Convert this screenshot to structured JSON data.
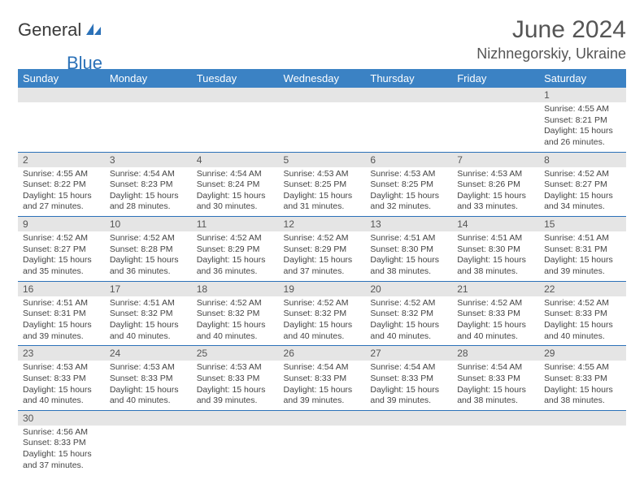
{
  "brand": {
    "part1": "General",
    "part2": "Blue"
  },
  "title": "June 2024",
  "location": "Nizhnegorskiy, Ukraine",
  "colors": {
    "header_bg": "#3b82c4",
    "header_text": "#ffffff",
    "daynum_bg": "#e5e5e5",
    "border": "#2b71b8",
    "brand_blue": "#2b71b8",
    "text": "#444444"
  },
  "weekdays": [
    "Sunday",
    "Monday",
    "Tuesday",
    "Wednesday",
    "Thursday",
    "Friday",
    "Saturday"
  ],
  "weeks": [
    [
      {
        "day": "",
        "lines": []
      },
      {
        "day": "",
        "lines": []
      },
      {
        "day": "",
        "lines": []
      },
      {
        "day": "",
        "lines": []
      },
      {
        "day": "",
        "lines": []
      },
      {
        "day": "",
        "lines": []
      },
      {
        "day": "1",
        "lines": [
          "Sunrise: 4:55 AM",
          "Sunset: 8:21 PM",
          "Daylight: 15 hours",
          "and 26 minutes."
        ]
      }
    ],
    [
      {
        "day": "2",
        "lines": [
          "Sunrise: 4:55 AM",
          "Sunset: 8:22 PM",
          "Daylight: 15 hours",
          "and 27 minutes."
        ]
      },
      {
        "day": "3",
        "lines": [
          "Sunrise: 4:54 AM",
          "Sunset: 8:23 PM",
          "Daylight: 15 hours",
          "and 28 minutes."
        ]
      },
      {
        "day": "4",
        "lines": [
          "Sunrise: 4:54 AM",
          "Sunset: 8:24 PM",
          "Daylight: 15 hours",
          "and 30 minutes."
        ]
      },
      {
        "day": "5",
        "lines": [
          "Sunrise: 4:53 AM",
          "Sunset: 8:25 PM",
          "Daylight: 15 hours",
          "and 31 minutes."
        ]
      },
      {
        "day": "6",
        "lines": [
          "Sunrise: 4:53 AM",
          "Sunset: 8:25 PM",
          "Daylight: 15 hours",
          "and 32 minutes."
        ]
      },
      {
        "day": "7",
        "lines": [
          "Sunrise: 4:53 AM",
          "Sunset: 8:26 PM",
          "Daylight: 15 hours",
          "and 33 minutes."
        ]
      },
      {
        "day": "8",
        "lines": [
          "Sunrise: 4:52 AM",
          "Sunset: 8:27 PM",
          "Daylight: 15 hours",
          "and 34 minutes."
        ]
      }
    ],
    [
      {
        "day": "9",
        "lines": [
          "Sunrise: 4:52 AM",
          "Sunset: 8:27 PM",
          "Daylight: 15 hours",
          "and 35 minutes."
        ]
      },
      {
        "day": "10",
        "lines": [
          "Sunrise: 4:52 AM",
          "Sunset: 8:28 PM",
          "Daylight: 15 hours",
          "and 36 minutes."
        ]
      },
      {
        "day": "11",
        "lines": [
          "Sunrise: 4:52 AM",
          "Sunset: 8:29 PM",
          "Daylight: 15 hours",
          "and 36 minutes."
        ]
      },
      {
        "day": "12",
        "lines": [
          "Sunrise: 4:52 AM",
          "Sunset: 8:29 PM",
          "Daylight: 15 hours",
          "and 37 minutes."
        ]
      },
      {
        "day": "13",
        "lines": [
          "Sunrise: 4:51 AM",
          "Sunset: 8:30 PM",
          "Daylight: 15 hours",
          "and 38 minutes."
        ]
      },
      {
        "day": "14",
        "lines": [
          "Sunrise: 4:51 AM",
          "Sunset: 8:30 PM",
          "Daylight: 15 hours",
          "and 38 minutes."
        ]
      },
      {
        "day": "15",
        "lines": [
          "Sunrise: 4:51 AM",
          "Sunset: 8:31 PM",
          "Daylight: 15 hours",
          "and 39 minutes."
        ]
      }
    ],
    [
      {
        "day": "16",
        "lines": [
          "Sunrise: 4:51 AM",
          "Sunset: 8:31 PM",
          "Daylight: 15 hours",
          "and 39 minutes."
        ]
      },
      {
        "day": "17",
        "lines": [
          "Sunrise: 4:51 AM",
          "Sunset: 8:32 PM",
          "Daylight: 15 hours",
          "and 40 minutes."
        ]
      },
      {
        "day": "18",
        "lines": [
          "Sunrise: 4:52 AM",
          "Sunset: 8:32 PM",
          "Daylight: 15 hours",
          "and 40 minutes."
        ]
      },
      {
        "day": "19",
        "lines": [
          "Sunrise: 4:52 AM",
          "Sunset: 8:32 PM",
          "Daylight: 15 hours",
          "and 40 minutes."
        ]
      },
      {
        "day": "20",
        "lines": [
          "Sunrise: 4:52 AM",
          "Sunset: 8:32 PM",
          "Daylight: 15 hours",
          "and 40 minutes."
        ]
      },
      {
        "day": "21",
        "lines": [
          "Sunrise: 4:52 AM",
          "Sunset: 8:33 PM",
          "Daylight: 15 hours",
          "and 40 minutes."
        ]
      },
      {
        "day": "22",
        "lines": [
          "Sunrise: 4:52 AM",
          "Sunset: 8:33 PM",
          "Daylight: 15 hours",
          "and 40 minutes."
        ]
      }
    ],
    [
      {
        "day": "23",
        "lines": [
          "Sunrise: 4:53 AM",
          "Sunset: 8:33 PM",
          "Daylight: 15 hours",
          "and 40 minutes."
        ]
      },
      {
        "day": "24",
        "lines": [
          "Sunrise: 4:53 AM",
          "Sunset: 8:33 PM",
          "Daylight: 15 hours",
          "and 40 minutes."
        ]
      },
      {
        "day": "25",
        "lines": [
          "Sunrise: 4:53 AM",
          "Sunset: 8:33 PM",
          "Daylight: 15 hours",
          "and 39 minutes."
        ]
      },
      {
        "day": "26",
        "lines": [
          "Sunrise: 4:54 AM",
          "Sunset: 8:33 PM",
          "Daylight: 15 hours",
          "and 39 minutes."
        ]
      },
      {
        "day": "27",
        "lines": [
          "Sunrise: 4:54 AM",
          "Sunset: 8:33 PM",
          "Daylight: 15 hours",
          "and 39 minutes."
        ]
      },
      {
        "day": "28",
        "lines": [
          "Sunrise: 4:54 AM",
          "Sunset: 8:33 PM",
          "Daylight: 15 hours",
          "and 38 minutes."
        ]
      },
      {
        "day": "29",
        "lines": [
          "Sunrise: 4:55 AM",
          "Sunset: 8:33 PM",
          "Daylight: 15 hours",
          "and 38 minutes."
        ]
      }
    ],
    [
      {
        "day": "30",
        "lines": [
          "Sunrise: 4:56 AM",
          "Sunset: 8:33 PM",
          "Daylight: 15 hours",
          "and 37 minutes."
        ]
      },
      {
        "day": "",
        "lines": []
      },
      {
        "day": "",
        "lines": []
      },
      {
        "day": "",
        "lines": []
      },
      {
        "day": "",
        "lines": []
      },
      {
        "day": "",
        "lines": []
      },
      {
        "day": "",
        "lines": []
      }
    ]
  ]
}
